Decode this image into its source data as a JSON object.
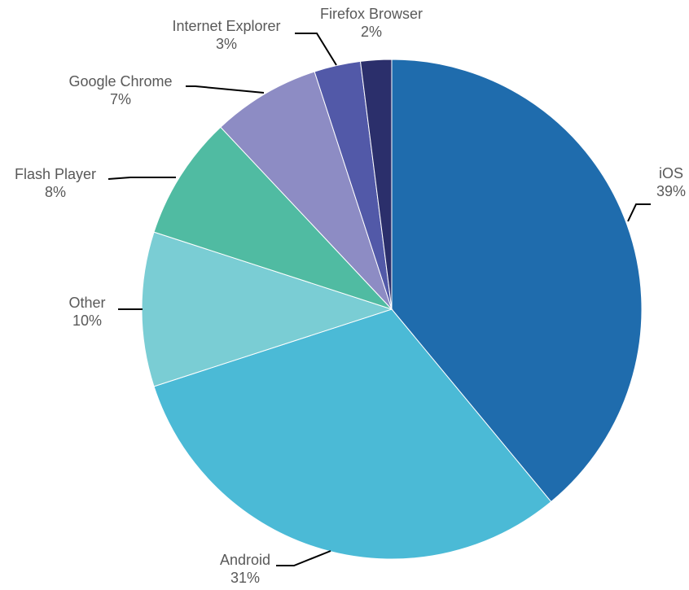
{
  "chart_data": {
    "type": "pie",
    "title": "",
    "slices": [
      {
        "label": "iOS",
        "value": 39,
        "value_label": "39%",
        "color": "#1f6cad"
      },
      {
        "label": "Android",
        "value": 31,
        "value_label": "31%",
        "color": "#4bbad6"
      },
      {
        "label": "Other",
        "value": 10,
        "value_label": "10%",
        "color": "#7acdd4"
      },
      {
        "label": "Flash Player",
        "value": 8,
        "value_label": "8%",
        "color": "#50bba2"
      },
      {
        "label": "Google Chrome",
        "value": 7,
        "value_label": "7%",
        "color": "#8d8cc4"
      },
      {
        "label": "Internet Explorer",
        "value": 3,
        "value_label": "3%",
        "color": "#5259a8"
      },
      {
        "label": "Firefox Browser",
        "value": 2,
        "value_label": "2%",
        "color": "#2b2f6b"
      }
    ],
    "start_angle": "12 o'clock",
    "direction": "clockwise",
    "legend": "none",
    "data_labels": "outside with leader lines"
  }
}
